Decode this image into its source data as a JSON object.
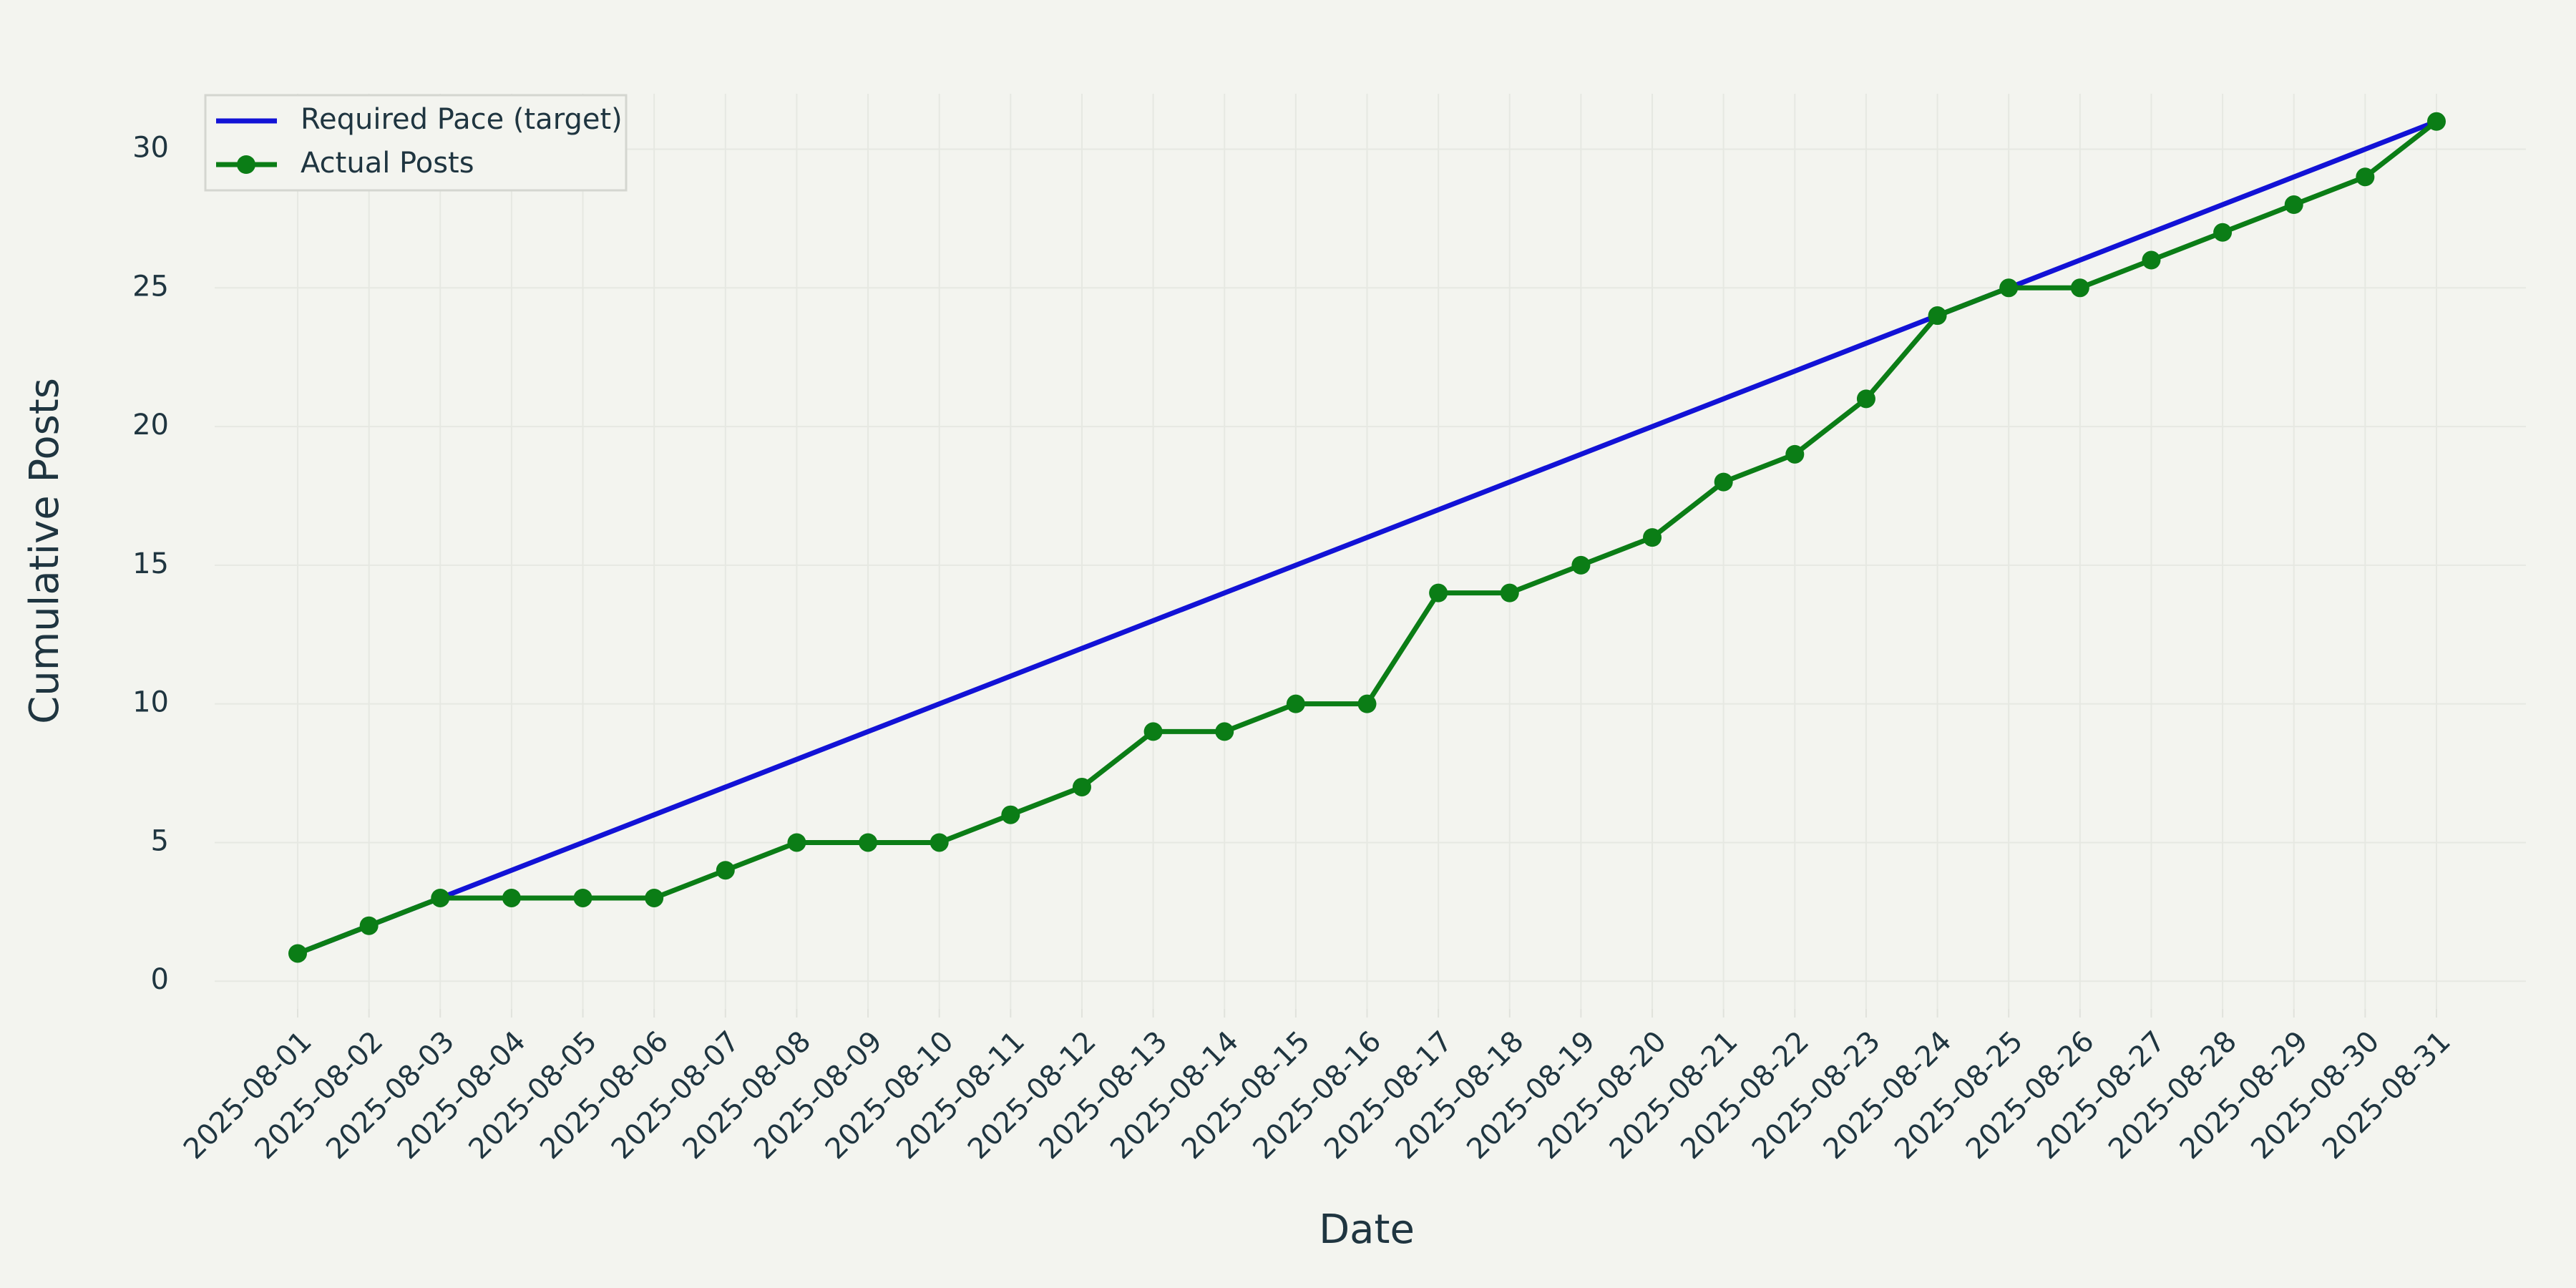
{
  "chart_data": {
    "type": "line",
    "x_label": "Date",
    "y_label": "Cumulative Posts",
    "categories": [
      "2025-08-01",
      "2025-08-02",
      "2025-08-03",
      "2025-08-04",
      "2025-08-05",
      "2025-08-06",
      "2025-08-07",
      "2025-08-08",
      "2025-08-09",
      "2025-08-10",
      "2025-08-11",
      "2025-08-12",
      "2025-08-13",
      "2025-08-14",
      "2025-08-15",
      "2025-08-16",
      "2025-08-17",
      "2025-08-18",
      "2025-08-19",
      "2025-08-20",
      "2025-08-21",
      "2025-08-22",
      "2025-08-23",
      "2025-08-24",
      "2025-08-25",
      "2025-08-26",
      "2025-08-27",
      "2025-08-28",
      "2025-08-29",
      "2025-08-30",
      "2025-08-31"
    ],
    "series": [
      {
        "name": "Required Pace (target)",
        "color": "#1212d6",
        "markers": false,
        "values": [
          1,
          2,
          3,
          4,
          5,
          6,
          7,
          8,
          9,
          10,
          11,
          12,
          13,
          14,
          15,
          16,
          17,
          18,
          19,
          20,
          21,
          22,
          23,
          24,
          25,
          26,
          27,
          28,
          29,
          30,
          31
        ]
      },
      {
        "name": "Actual Posts",
        "color": "#0b7d16",
        "markers": true,
        "values": [
          1,
          2,
          3,
          3,
          3,
          3,
          4,
          5,
          5,
          5,
          6,
          7,
          9,
          9,
          10,
          10,
          14,
          14,
          15,
          16,
          18,
          19,
          21,
          24,
          25,
          25,
          26,
          27,
          28,
          29,
          31
        ]
      }
    ],
    "ylim": [
      -1,
      32
    ],
    "yticks": [
      0,
      5,
      10,
      15,
      20,
      25,
      30
    ],
    "grid": true,
    "legend": "upper left"
  }
}
